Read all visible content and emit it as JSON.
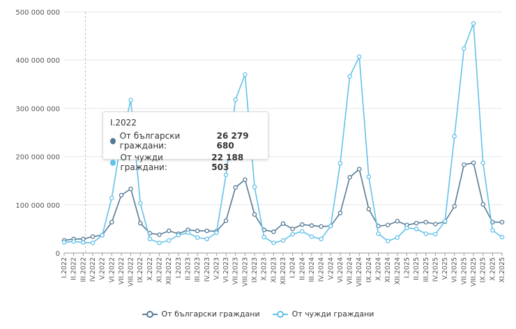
{
  "chart_data": {
    "type": "line",
    "title": "",
    "xlabel": "",
    "ylabel": "",
    "ylim": [
      0,
      500000000
    ],
    "y_ticks": [
      "0",
      "100 000 000",
      "200 000 000",
      "300 000 000",
      "400 000 000",
      "500 000 000"
    ],
    "categories": [
      "I.2022",
      "II.2022",
      "III.2022",
      "IV.2022",
      "V.2022",
      "VI.2022",
      "VII.2022",
      "VIII.2022",
      "IX.2022",
      "X.2022",
      "XI.2022",
      "XII.2022",
      "I.2023",
      "II.2023",
      "III.2023",
      "IV.2023",
      "V.2023",
      "VI.2023",
      "VII.2023",
      "VIII.2023",
      "IX.2023",
      "X.2023",
      "XI.2023",
      "XII.2023",
      "I.2024",
      "II.2024",
      "III.2024",
      "IV.2024",
      "V.2024",
      "VI.2024",
      "VII.2024",
      "VIII.2024",
      "IX.2024",
      "X.2024",
      "XI.2024",
      "XII.2024",
      "I.2025",
      "II.2025",
      "III.2025",
      "IV.2025",
      "V.2025",
      "VI.2025",
      "VII.2025",
      "VIII.2025",
      "IX.2025",
      "X.2025",
      "XI.2025"
    ],
    "x_tick_labels": [
      "I.2022",
      "II.2022",
      "III.2022",
      "IV.2022",
      "V.2022",
      "VI.2022",
      "VII.2022",
      "VIII.2022",
      "IX.2022",
      "X.2022",
      "XI.2022",
      "XII.2022",
      "I.2023",
      "II.2023",
      "III.2023",
      "IV.2023",
      "V.2023",
      "VI.2023",
      "VII.2023",
      "VIII.2023",
      "IX.2023",
      "X.2023",
      "XI.2023",
      "XII.2023",
      "I.2024",
      "II.2024",
      "III.2024",
      "IV.2024",
      "V.2024",
      "VI.2024",
      "VII.2024",
      "VIII.2024",
      "IX.2024",
      "X.2024",
      "XI.2024",
      "XII.2024",
      "I.2025",
      "II.2025",
      "III.2025",
      "IV.2025",
      "V.2025",
      "VI.2025",
      "VII.2025",
      "VIII.2025",
      "IX.2025",
      "X.2025",
      "XI.2025"
    ],
    "series": [
      {
        "name": "От български граждани",
        "color": "#557a95",
        "values": [
          26279680,
          29000000,
          29000000,
          34000000,
          37000000,
          64000000,
          120000000,
          133000000,
          62000000,
          41000000,
          38000000,
          46000000,
          40000000,
          48000000,
          46000000,
          46000000,
          45000000,
          67000000,
          136000000,
          152000000,
          80000000,
          48000000,
          44000000,
          61000000,
          50000000,
          59000000,
          57000000,
          55000000,
          56000000,
          83000000,
          157000000,
          174000000,
          91000000,
          56000000,
          58000000,
          66000000,
          58000000,
          62000000,
          64000000,
          60000000,
          65000000,
          97000000,
          183000000,
          187000000,
          101000000,
          64000000,
          64000000
        ]
      },
      {
        "name": "От чужди граждани",
        "color": "#64c1e8",
        "values": [
          22188503,
          24000000,
          22000000,
          21000000,
          37000000,
          114000000,
          234000000,
          317000000,
          103000000,
          29000000,
          21000000,
          26000000,
          37000000,
          42000000,
          32000000,
          29000000,
          42000000,
          162000000,
          318000000,
          370000000,
          137000000,
          33000000,
          21000000,
          26000000,
          39000000,
          45000000,
          34000000,
          29000000,
          56000000,
          186000000,
          366000000,
          407000000,
          158000000,
          40000000,
          25000000,
          32000000,
          52000000,
          50000000,
          40000000,
          39000000,
          66000000,
          242000000,
          424000000,
          476000000,
          187000000,
          47000000,
          33000000
        ]
      }
    ],
    "grid": true,
    "legend_position": "bottom"
  },
  "tooltip": {
    "title": "I.2022",
    "rows": [
      {
        "label": "От български граждани: ",
        "value": "26 279 680",
        "color": "#557a95"
      },
      {
        "label": "От чужди граждани: ",
        "value": "22 188 503",
        "color": "#64c1e8"
      }
    ]
  },
  "legend": {
    "items": [
      {
        "label": "От български граждани",
        "color": "#557a95"
      },
      {
        "label": "От чужди граждани",
        "color": "#64c1e8"
      }
    ]
  }
}
